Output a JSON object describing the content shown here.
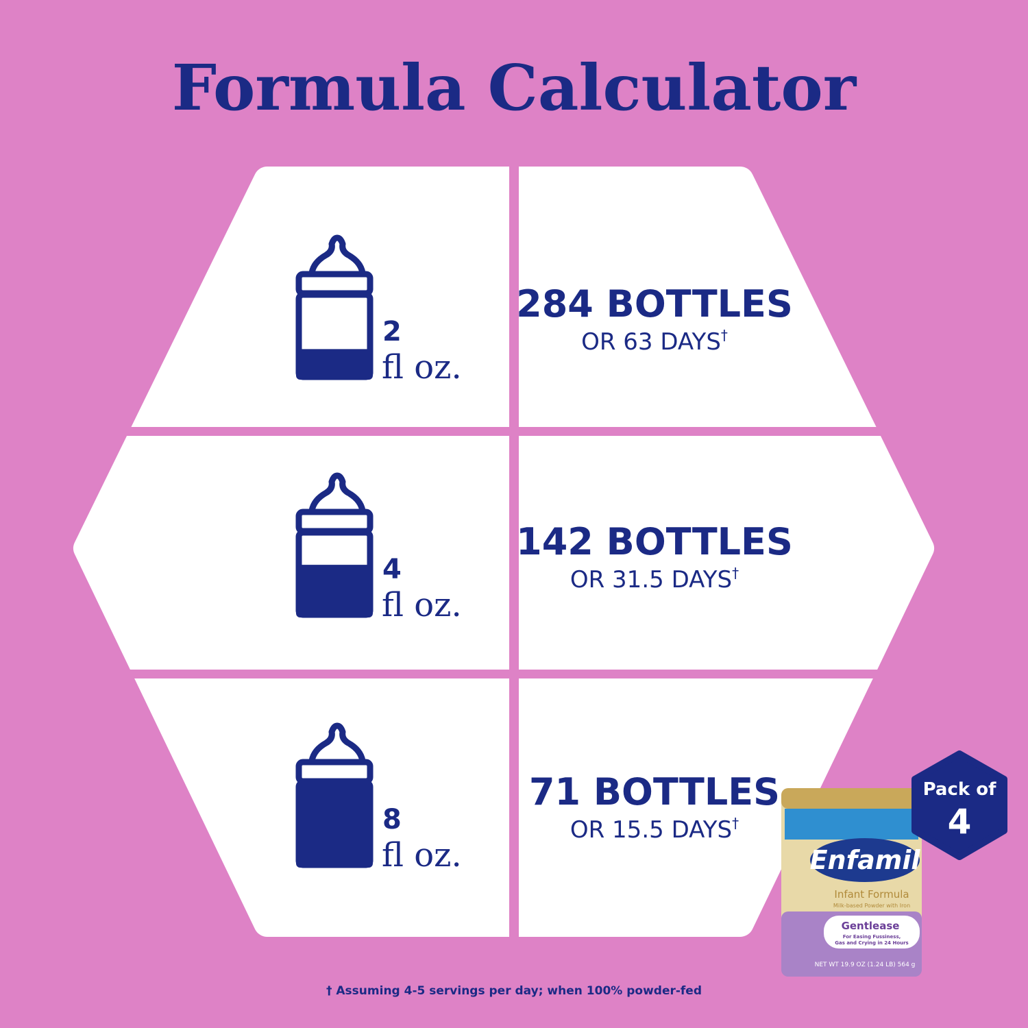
{
  "title": "Formula Calculator",
  "rows": [
    {
      "amount": "2",
      "unit": "fl oz.",
      "bottles": "284 BOTTLES",
      "days": "OR 63 DAYS",
      "dagger": "†"
    },
    {
      "amount": "4",
      "unit": "fl oz.",
      "bottles": "142 BOTTLES",
      "days": "OR 31.5 DAYS",
      "dagger": "†"
    },
    {
      "amount": "8",
      "unit": "fl oz.",
      "bottles": "71 BOTTLES",
      "days": "OR 15.5 DAYS",
      "dagger": "†"
    }
  ],
  "badge": {
    "line1": "Pack of",
    "line2": "4"
  },
  "product": {
    "brand": "Enfamil",
    "name": "Infant Formula",
    "subname": "Milk-based Powder with Iron",
    "variant": "Gentlease",
    "claim1": "For Easing Fussiness,",
    "claim2": "Gas and Crying in 24 Hours",
    "net_weight": "NET WT 19.9 OZ (1.24 LB) 564 g"
  },
  "footnote": "†  Assuming 4-5 servings per day; when 100% powder-fed"
}
